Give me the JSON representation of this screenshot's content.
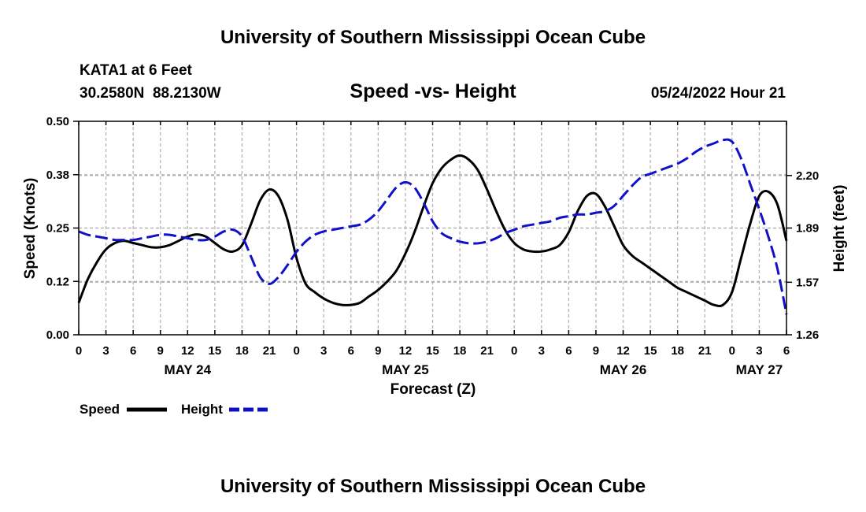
{
  "header": {
    "title": "University of Southern Mississippi Ocean Cube",
    "station": "KATA1 at 6 Feet",
    "coords": "30.2580N  88.2130W",
    "subtitle": "Speed -vs- Height",
    "timestamp": "05/24/2022 Hour 21"
  },
  "footer": {
    "title": "University of Southern Mississippi Ocean Cube"
  },
  "legend": {
    "speed_label": "Speed",
    "height_label": "Height"
  },
  "colors": {
    "speed": "#000000",
    "height": "#1010c8",
    "grid": "#b4b4b4"
  },
  "chart_data": {
    "type": "line",
    "title": "Speed -vs- Height",
    "xlabel": "Forecast (Z)",
    "ylabel": "Speed (Knots)",
    "y2label": "Height (feet)",
    "x_unit": "hours from May 24 00Z",
    "xlim": [
      0,
      78
    ],
    "ylim": [
      0,
      0.5
    ],
    "y2lim": [
      1.26,
      2.52
    ],
    "x_ticks": [
      0,
      3,
      6,
      9,
      12,
      15,
      18,
      21,
      24,
      27,
      30,
      33,
      36,
      39,
      42,
      45,
      48,
      51,
      54,
      57,
      60,
      63,
      66,
      69,
      72,
      75,
      78
    ],
    "x_tick_labels": [
      "0",
      "3",
      "6",
      "9",
      "12",
      "15",
      "18",
      "21",
      "0",
      "3",
      "6",
      "9",
      "12",
      "15",
      "18",
      "21",
      "0",
      "3",
      "6",
      "9",
      "12",
      "15",
      "18",
      "21",
      "0",
      "3",
      "6"
    ],
    "day_labels": [
      {
        "x": 12,
        "label": "MAY 24"
      },
      {
        "x": 36,
        "label": "MAY 25"
      },
      {
        "x": 60,
        "label": "MAY 26"
      },
      {
        "x": 75,
        "label": "MAY 27"
      }
    ],
    "y_ticks": [
      0,
      0.125,
      0.25,
      0.375,
      0.5
    ],
    "y_tick_labels": [
      "0.00",
      "0.12",
      "0.25",
      "0.38",
      "0.50"
    ],
    "y2_ticks": [
      1.26,
      1.57,
      1.89,
      2.2
    ],
    "y2_tick_labels": [
      "1.26",
      "1.57",
      "1.89",
      "2.20"
    ],
    "grid": true,
    "legend_position": "bottom-left",
    "series": [
      {
        "name": "Speed",
        "axis": "left",
        "style": "solid",
        "x": [
          0,
          1,
          2,
          3,
          4,
          5,
          6,
          7,
          8,
          9,
          10,
          11,
          12,
          13,
          14,
          15,
          16,
          17,
          18,
          19,
          20,
          21,
          22,
          23,
          24,
          25,
          26,
          27,
          28,
          29,
          30,
          31,
          32,
          33,
          34,
          35,
          36,
          37,
          38,
          39,
          40,
          41,
          42,
          43,
          44,
          45,
          46,
          47,
          48,
          49,
          50,
          51,
          52,
          53,
          54,
          55,
          56,
          57,
          58,
          59,
          60,
          61,
          62,
          63,
          64,
          65,
          66,
          67,
          68,
          69,
          70,
          71,
          72,
          73,
          74,
          75,
          76,
          77,
          78
        ],
        "values": [
          0.075,
          0.13,
          0.17,
          0.2,
          0.215,
          0.22,
          0.215,
          0.21,
          0.205,
          0.205,
          0.21,
          0.22,
          0.23,
          0.235,
          0.23,
          0.215,
          0.2,
          0.195,
          0.21,
          0.26,
          0.315,
          0.34,
          0.325,
          0.27,
          0.18,
          0.12,
          0.1,
          0.085,
          0.075,
          0.07,
          0.07,
          0.075,
          0.09,
          0.105,
          0.125,
          0.15,
          0.19,
          0.24,
          0.3,
          0.355,
          0.39,
          0.41,
          0.42,
          0.41,
          0.385,
          0.34,
          0.29,
          0.245,
          0.215,
          0.2,
          0.195,
          0.195,
          0.2,
          0.21,
          0.24,
          0.29,
          0.325,
          0.33,
          0.3,
          0.255,
          0.21,
          0.185,
          0.17,
          0.155,
          0.14,
          0.125,
          0.11,
          0.1,
          0.09,
          0.08,
          0.07,
          0.07,
          0.1,
          0.18,
          0.26,
          0.325,
          0.335,
          0.305,
          0.22
        ]
      },
      {
        "name": "Height",
        "axis": "right",
        "style": "dashed",
        "x": [
          0,
          1,
          2,
          3,
          4,
          5,
          6,
          7,
          8,
          9,
          10,
          11,
          12,
          13,
          14,
          15,
          16,
          17,
          18,
          19,
          20,
          21,
          22,
          23,
          24,
          25,
          26,
          27,
          28,
          29,
          30,
          31,
          32,
          33,
          34,
          35,
          36,
          37,
          38,
          39,
          40,
          41,
          42,
          43,
          44,
          45,
          46,
          47,
          48,
          49,
          50,
          51,
          52,
          53,
          54,
          55,
          56,
          57,
          58,
          59,
          60,
          61,
          62,
          63,
          64,
          65,
          66,
          67,
          68,
          69,
          70,
          71,
          72,
          73,
          74,
          75,
          76,
          77,
          78
        ],
        "values": [
          1.87,
          1.85,
          1.84,
          1.83,
          1.82,
          1.82,
          1.82,
          1.83,
          1.84,
          1.85,
          1.85,
          1.84,
          1.83,
          1.82,
          1.82,
          1.84,
          1.87,
          1.88,
          1.84,
          1.72,
          1.6,
          1.56,
          1.6,
          1.67,
          1.75,
          1.81,
          1.85,
          1.87,
          1.88,
          1.89,
          1.9,
          1.91,
          1.94,
          1.99,
          2.06,
          2.13,
          2.16,
          2.13,
          2.04,
          1.93,
          1.86,
          1.83,
          1.81,
          1.8,
          1.8,
          1.81,
          1.83,
          1.86,
          1.88,
          1.9,
          1.91,
          1.92,
          1.93,
          1.95,
          1.96,
          1.97,
          1.97,
          1.98,
          1.99,
          2.02,
          2.08,
          2.14,
          2.19,
          2.21,
          2.23,
          2.25,
          2.27,
          2.3,
          2.34,
          2.37,
          2.39,
          2.41,
          2.4,
          2.3,
          2.15,
          2.0,
          1.84,
          1.65,
          1.38
        ]
      }
    ]
  }
}
